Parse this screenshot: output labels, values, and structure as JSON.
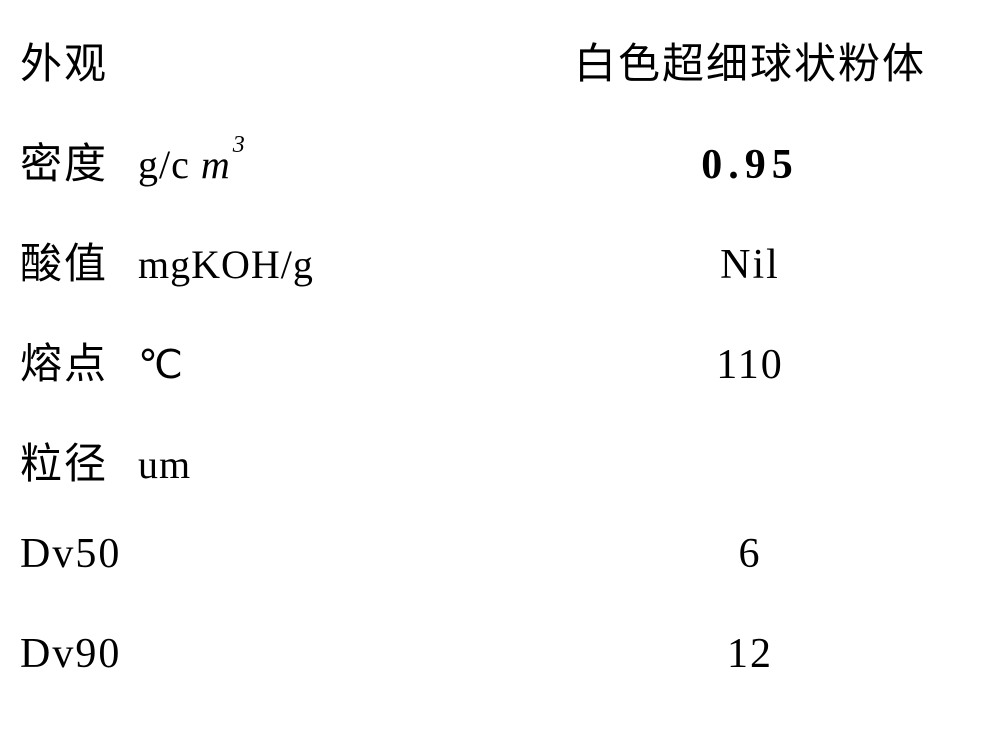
{
  "table": {
    "rows": [
      {
        "label": "外观",
        "unit": "",
        "value": "白色超细球状粉体",
        "value_bold": false
      },
      {
        "label": "密度",
        "unit_prefix": "g/c ",
        "unit_m": "m",
        "unit_sup": "3",
        "value": "0.95",
        "value_bold": true
      },
      {
        "label": "酸值",
        "unit": "mgKOH/g",
        "value": "Nil",
        "value_bold": false
      },
      {
        "label": "熔点",
        "unit": "℃",
        "value": "110",
        "value_bold": false
      },
      {
        "label": "粒径",
        "unit": "um",
        "value": "",
        "value_bold": false
      },
      {
        "label": "Dv50",
        "unit": "",
        "value": "6",
        "value_bold": false
      },
      {
        "label": "Dv90",
        "unit": "",
        "value": "12",
        "value_bold": false
      }
    ],
    "colors": {
      "background": "#ffffff",
      "text": "#000000"
    },
    "font": {
      "family": "SimSun",
      "size_main": 42,
      "size_unit": 40,
      "size_sup": 24
    }
  }
}
